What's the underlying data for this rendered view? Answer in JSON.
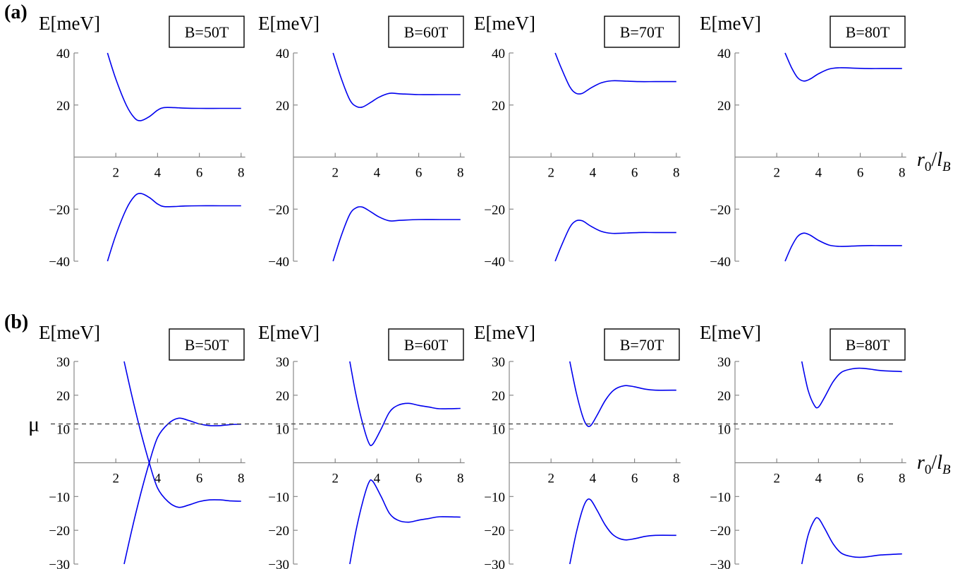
{
  "panel_labels": [
    "(a)",
    "(b)"
  ],
  "x_axis_label": {
    "main": "r",
    "sub1": "0",
    "slash": "/",
    "letter": "l",
    "sub2": "B"
  },
  "mu_label": "μ",
  "chart_data": [
    {
      "type": "line",
      "panel": "(a)",
      "ylabel": "E[meV]",
      "xlabel": "r0/lB",
      "xlim": [
        0,
        8
      ],
      "ylim": [
        -40,
        40
      ],
      "x_ticks": [
        2,
        4,
        6,
        8
      ],
      "y_ticks": [
        -40,
        -20,
        20,
        40
      ],
      "line_color": "#0000ee",
      "subplots": [
        {
          "label": "B=50T",
          "series": [
            {
              "x": [
                1.6,
                2.0,
                2.5,
                2.9,
                3.2,
                3.6,
                4.0,
                4.3,
                4.8,
                5.3,
                6.0,
                7.0,
                8.0
              ],
              "y": [
                40,
                30,
                20,
                15,
                14,
                15.5,
                18,
                19,
                19,
                18.8,
                18.7,
                18.7,
                18.7
              ]
            },
            {
              "x": [
                1.6,
                2.0,
                2.5,
                2.9,
                3.2,
                3.6,
                4.0,
                4.3,
                4.8,
                5.3,
                6.0,
                7.0,
                8.0
              ],
              "y": [
                -40,
                -30,
                -20,
                -15,
                -14,
                -15.5,
                -18,
                -19,
                -19,
                -18.8,
                -18.7,
                -18.7,
                -18.7
              ]
            }
          ]
        },
        {
          "label": "B=60T",
          "series": [
            {
              "x": [
                1.9,
                2.3,
                2.7,
                3.0,
                3.3,
                3.7,
                4.1,
                4.6,
                5.1,
                6.0,
                7.0,
                8.0
              ],
              "y": [
                40,
                30,
                22,
                19.5,
                19.2,
                21,
                23,
                24.5,
                24.3,
                24,
                24,
                24
              ]
            },
            {
              "x": [
                1.9,
                2.3,
                2.7,
                3.0,
                3.3,
                3.7,
                4.1,
                4.6,
                5.1,
                6.0,
                7.0,
                8.0
              ],
              "y": [
                -40,
                -30,
                -22,
                -19.5,
                -19.2,
                -21,
                -23,
                -24.5,
                -24.3,
                -24,
                -24,
                -24
              ]
            }
          ]
        },
        {
          "label": "B=70T",
          "series": [
            {
              "x": [
                2.2,
                2.5,
                2.9,
                3.2,
                3.5,
                3.9,
                4.4,
                4.9,
                5.5,
                6.2,
                7.0,
                8.0
              ],
              "y": [
                40,
                34,
                27,
                24.5,
                24.5,
                26.5,
                28.5,
                29.3,
                29.2,
                29,
                29,
                29
              ]
            },
            {
              "x": [
                2.2,
                2.5,
                2.9,
                3.2,
                3.5,
                3.9,
                4.4,
                4.9,
                5.5,
                6.2,
                7.0,
                8.0
              ],
              "y": [
                -40,
                -34,
                -27,
                -24.5,
                -24.5,
                -26.5,
                -28.5,
                -29.3,
                -29.2,
                -29,
                -29,
                -29
              ]
            }
          ]
        },
        {
          "label": "B=80T",
          "series": [
            {
              "x": [
                2.4,
                2.7,
                3.0,
                3.3,
                3.6,
                4.0,
                4.5,
                5.0,
                5.6,
                6.3,
                7.0,
                8.0
              ],
              "y": [
                40,
                34.5,
                30.5,
                29.2,
                30,
                32,
                33.8,
                34.3,
                34.2,
                34,
                34,
                34
              ]
            },
            {
              "x": [
                2.4,
                2.7,
                3.0,
                3.3,
                3.6,
                4.0,
                4.5,
                5.0,
                5.6,
                6.3,
                7.0,
                8.0
              ],
              "y": [
                -40,
                -34.5,
                -30.5,
                -29.2,
                -30,
                -32,
                -33.8,
                -34.3,
                -34.2,
                -34,
                -34,
                -34
              ]
            }
          ]
        }
      ]
    },
    {
      "type": "line",
      "panel": "(b)",
      "ylabel": "E[meV]",
      "xlabel": "r0/lB",
      "xlim": [
        0,
        8
      ],
      "ylim": [
        -30,
        30
      ],
      "x_ticks": [
        2,
        4,
        6,
        8
      ],
      "y_ticks": [
        -30,
        -20,
        -10,
        10,
        20,
        30
      ],
      "mu": 11.5,
      "line_color": "#0000ee",
      "subplots": [
        {
          "label": "B=50T",
          "series": [
            {
              "x": [
                2.4,
                2.8,
                3.2,
                3.6,
                4.0,
                4.5,
                5.0,
                5.5,
                6.0,
                6.5,
                7.0,
                7.5,
                8.0
              ],
              "y": [
                30,
                19,
                9,
                0,
                -7.5,
                -11.5,
                -13.2,
                -12.5,
                -11.5,
                -11,
                -11,
                -11.3,
                -11.4
              ]
            },
            {
              "x": [
                2.4,
                2.8,
                3.2,
                3.6,
                4.0,
                4.5,
                5.0,
                5.5,
                6.0,
                6.5,
                7.0,
                7.5,
                8.0
              ],
              "y": [
                -30,
                -19,
                -9,
                0,
                7.5,
                11.5,
                13.2,
                12.5,
                11.5,
                11,
                11,
                11.3,
                11.4
              ]
            }
          ]
        },
        {
          "label": "B=60T",
          "series": [
            {
              "x": [
                2.7,
                3.0,
                3.3,
                3.6,
                3.8,
                4.2,
                4.6,
                5.0,
                5.5,
                6.0,
                6.5,
                7.0,
                8.0
              ],
              "y": [
                30,
                20,
                12,
                6,
                5.5,
                10,
                15,
                17,
                17.6,
                17,
                16.5,
                16,
                16.1
              ]
            },
            {
              "x": [
                2.7,
                3.0,
                3.3,
                3.6,
                3.8,
                4.2,
                4.6,
                5.0,
                5.5,
                6.0,
                6.5,
                7.0,
                8.0
              ],
              "y": [
                -30,
                -20,
                -12,
                -6,
                -5.5,
                -10,
                -15,
                -17,
                -17.6,
                -17,
                -16.5,
                -16,
                -16.1
              ]
            }
          ]
        },
        {
          "label": "B=70T",
          "series": [
            {
              "x": [
                2.9,
                3.2,
                3.5,
                3.7,
                3.9,
                4.2,
                4.6,
                5.0,
                5.5,
                6.0,
                6.5,
                7.0,
                8.0
              ],
              "y": [
                30,
                21,
                14,
                11.2,
                11,
                14,
                18.5,
                21.5,
                22.8,
                22.5,
                21.8,
                21.5,
                21.5
              ]
            },
            {
              "x": [
                2.9,
                3.2,
                3.5,
                3.7,
                3.9,
                4.2,
                4.6,
                5.0,
                5.5,
                6.0,
                6.5,
                7.0,
                8.0
              ],
              "y": [
                -30,
                -21,
                -14,
                -11.2,
                -11,
                -14,
                -18.5,
                -21.5,
                -22.8,
                -22.5,
                -21.8,
                -21.5,
                -21.5
              ]
            }
          ]
        },
        {
          "label": "B=80T",
          "series": [
            {
              "x": [
                3.2,
                3.5,
                3.8,
                4.0,
                4.3,
                4.7,
                5.1,
                5.6,
                6.0,
                6.5,
                7.0,
                8.0
              ],
              "y": [
                30,
                21.5,
                17,
                16.5,
                19.5,
                24,
                26.8,
                27.8,
                28,
                27.7,
                27.3,
                27
              ]
            },
            {
              "x": [
                3.2,
                3.5,
                3.8,
                4.0,
                4.3,
                4.7,
                5.1,
                5.6,
                6.0,
                6.5,
                7.0,
                8.0
              ],
              "y": [
                -30,
                -21.5,
                -17,
                -16.5,
                -19.5,
                -24,
                -26.8,
                -27.8,
                -28,
                -27.7,
                -27.3,
                -27
              ]
            }
          ]
        }
      ]
    }
  ]
}
